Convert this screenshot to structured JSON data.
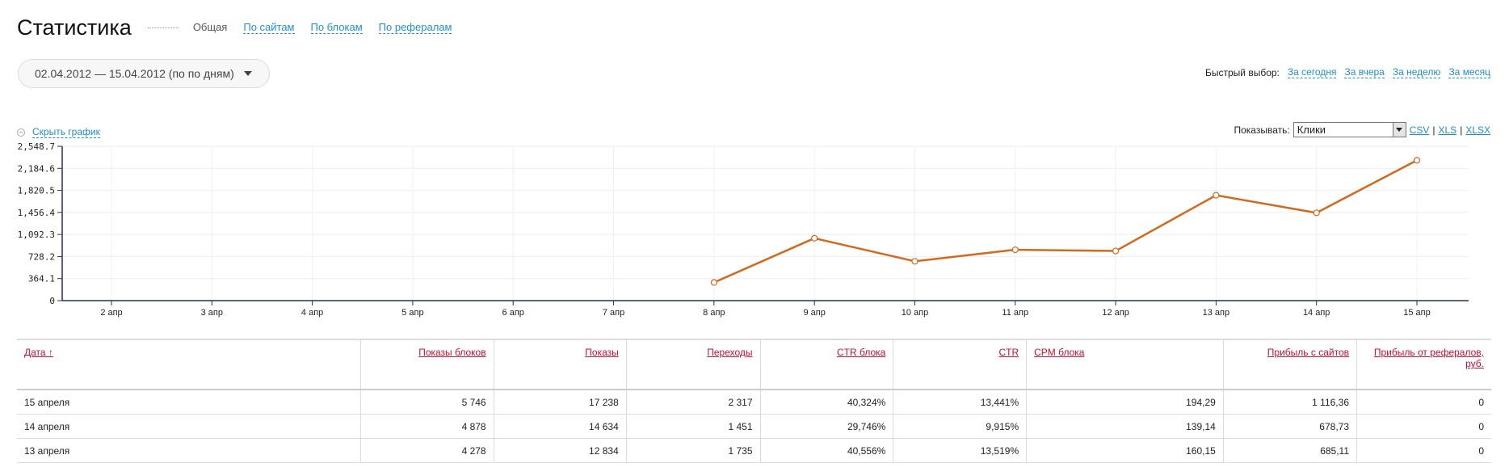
{
  "header": {
    "title": "Статистика",
    "tabs": [
      "Общая",
      "По сайтам",
      "По блокам",
      "По рефералам"
    ]
  },
  "date_range": {
    "label": "02.04.2012 — 15.04.2012 (по по дням)"
  },
  "quick_select": {
    "label": "Быстрый выбор:",
    "options": [
      "За сегодня",
      "За вчера",
      "За неделю",
      "За месяц"
    ]
  },
  "hide_chart": {
    "symbol": "−",
    "label": "Скрыть график"
  },
  "show_control": {
    "label": "Показывать:",
    "selected": "Клики",
    "exports": [
      "CSV",
      "XLS",
      "XLSX"
    ],
    "separator": "|"
  },
  "colors": {
    "line": "#d2691e",
    "link": "#1e8fd1",
    "header_link": "#c8102e"
  },
  "chart_data": {
    "type": "line",
    "x": [
      "2 апр",
      "3 апр",
      "4 апр",
      "5 апр",
      "6 апр",
      "7 апр",
      "8 апр",
      "9 апр",
      "10 апр",
      "11 апр",
      "12 апр",
      "13 апр",
      "14 апр",
      "15 апр"
    ],
    "series": [
      {
        "values": [
          null,
          null,
          null,
          null,
          null,
          null,
          300,
          1030,
          650,
          840,
          820,
          1740,
          1450,
          2317
        ]
      }
    ],
    "yticks": [
      0,
      364.1,
      728.2,
      1092.3,
      1456.4,
      1820.5,
      2184.6,
      2548.7
    ],
    "ytick_labels": [
      "0",
      "364.1",
      "728.2",
      "1,092.3",
      "1,456.4",
      "1,820.5",
      "2,184.6",
      "2,548.7"
    ],
    "ylim": [
      0,
      2548.7
    ],
    "grid": true
  },
  "table": {
    "columns": [
      {
        "label": "Дата ↑",
        "align": "left"
      },
      {
        "label": "Показы блоков",
        "align": "right"
      },
      {
        "label": "Показы",
        "align": "right"
      },
      {
        "label": "Переходы",
        "align": "right"
      },
      {
        "label": "CTR блока",
        "align": "right"
      },
      {
        "label": "CTR",
        "align": "right"
      },
      {
        "label": "CPM блока",
        "align": "left"
      },
      {
        "label": "Прибыль с сайтов",
        "align": "right"
      },
      {
        "label": "Прибыль от рефералов, руб.",
        "align": "right"
      }
    ],
    "rows": [
      [
        "15 апреля",
        "5 746",
        "17 238",
        "2 317",
        "40,324%",
        "13,441%",
        "194,29",
        "1 116,36",
        "0"
      ],
      [
        "14 апреля",
        "4 878",
        "14 634",
        "1 451",
        "29,746%",
        "9,915%",
        "139,14",
        "678,73",
        "0"
      ],
      [
        "13 апреля",
        "4 278",
        "12 834",
        "1 735",
        "40,556%",
        "13,519%",
        "160,15",
        "685,11",
        "0"
      ]
    ]
  }
}
